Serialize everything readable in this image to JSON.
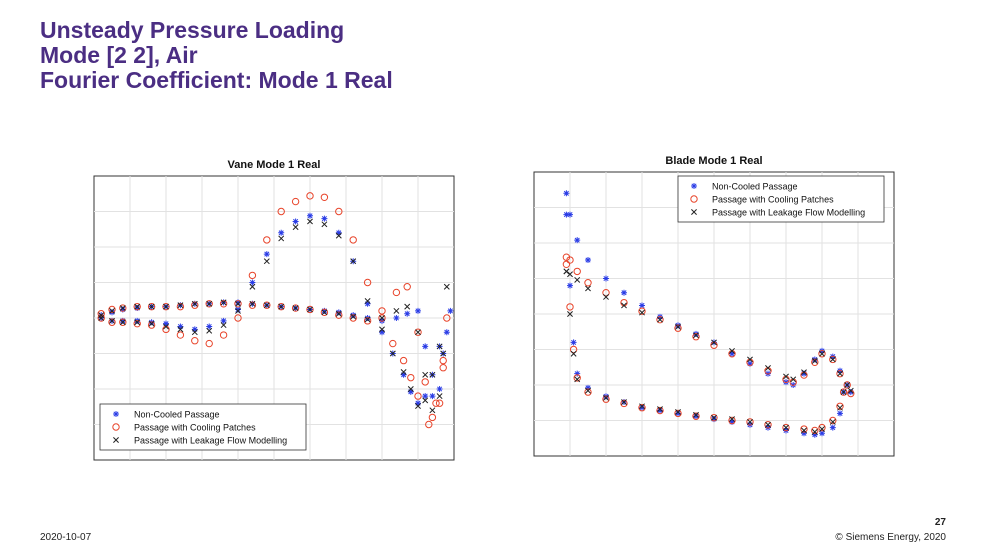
{
  "slide": {
    "title_lines": [
      "Unsteady Pressure Loading",
      "Mode [2 2], Air",
      "Fourier Coefficient: Mode 1 Real"
    ],
    "footer_date": "2020-10-07",
    "footer_copyright": "© Siemens Energy, 2020",
    "page_number": "27",
    "title_color": "#4b2e83"
  },
  "chart_data": [
    {
      "type": "scatter",
      "title": "Vane Mode 1 Real",
      "xlabel": "",
      "ylabel": "",
      "xlim": [
        0,
        1
      ],
      "ylim": [
        -1,
        1
      ],
      "grid": true,
      "legend_position": "bottom-left",
      "series": [
        {
          "name": "Non-Cooled Passage",
          "marker": "star",
          "color": "#2a3ce6",
          "x": [
            0.02,
            0.05,
            0.08,
            0.12,
            0.16,
            0.2,
            0.24,
            0.28,
            0.32,
            0.36,
            0.4,
            0.44,
            0.48,
            0.52,
            0.56,
            0.6,
            0.64,
            0.68,
            0.72,
            0.76,
            0.8,
            0.84,
            0.87,
            0.9,
            0.92,
            0.94,
            0.96,
            0.97,
            0.98,
            0.99
          ],
          "y": [
            0.02,
            0.04,
            0.06,
            0.07,
            0.08,
            0.08,
            0.09,
            0.1,
            0.1,
            0.11,
            0.11,
            0.1,
            0.09,
            0.08,
            0.07,
            0.06,
            0.05,
            0.04,
            0.02,
            0.0,
            -0.02,
            0.0,
            0.03,
            0.05,
            -0.2,
            -0.55,
            -0.5,
            -0.25,
            -0.1,
            0.05
          ]
        },
        {
          "name": "Non-Cooled Passage",
          "marker": "star",
          "color": "#2a3ce6",
          "x": [
            0.02,
            0.05,
            0.08,
            0.12,
            0.16,
            0.2,
            0.24,
            0.28,
            0.32,
            0.36,
            0.4,
            0.44,
            0.48,
            0.52,
            0.56,
            0.6,
            0.64,
            0.68,
            0.72,
            0.76,
            0.8,
            0.83,
            0.86,
            0.88,
            0.9,
            0.92,
            0.94,
            0.96
          ],
          "y": [
            0.0,
            -0.02,
            -0.02,
            -0.02,
            -0.03,
            -0.04,
            -0.06,
            -0.08,
            -0.06,
            -0.02,
            0.06,
            0.25,
            0.45,
            0.6,
            0.68,
            0.72,
            0.7,
            0.6,
            0.4,
            0.1,
            -0.1,
            -0.25,
            -0.4,
            -0.52,
            -0.6,
            -0.55,
            -0.4,
            -0.2
          ]
        },
        {
          "name": "Passage with Cooling Patches",
          "marker": "circle",
          "color": "#e8442a",
          "x": [
            0.02,
            0.05,
            0.08,
            0.12,
            0.16,
            0.2,
            0.24,
            0.28,
            0.32,
            0.36,
            0.4,
            0.44,
            0.48,
            0.52,
            0.56,
            0.6,
            0.64,
            0.68,
            0.72,
            0.76,
            0.8,
            0.84,
            0.87,
            0.9,
            0.92,
            0.94,
            0.96,
            0.97,
            0.98
          ],
          "y": [
            0.03,
            0.06,
            0.07,
            0.08,
            0.08,
            0.08,
            0.08,
            0.09,
            0.1,
            0.1,
            0.1,
            0.09,
            0.09,
            0.08,
            0.07,
            0.06,
            0.04,
            0.02,
            0.0,
            -0.02,
            0.05,
            0.18,
            0.22,
            -0.1,
            -0.45,
            -0.7,
            -0.6,
            -0.3,
            0.0
          ]
        },
        {
          "name": "Passage with Cooling Patches",
          "marker": "circle",
          "color": "#e8442a",
          "x": [
            0.02,
            0.05,
            0.08,
            0.12,
            0.16,
            0.2,
            0.24,
            0.28,
            0.32,
            0.36,
            0.4,
            0.44,
            0.48,
            0.52,
            0.56,
            0.6,
            0.64,
            0.68,
            0.72,
            0.76,
            0.8,
            0.83,
            0.86,
            0.88,
            0.9,
            0.93,
            0.95,
            0.97
          ],
          "y": [
            0.0,
            -0.03,
            -0.03,
            -0.04,
            -0.05,
            -0.08,
            -0.12,
            -0.16,
            -0.18,
            -0.12,
            0.0,
            0.3,
            0.55,
            0.75,
            0.82,
            0.86,
            0.85,
            0.75,
            0.55,
            0.25,
            0.0,
            -0.18,
            -0.3,
            -0.42,
            -0.55,
            -0.75,
            -0.6,
            -0.35
          ]
        },
        {
          "name": "Passage with Leakage Flow Modelling",
          "marker": "x",
          "color": "#222222",
          "x": [
            0.02,
            0.05,
            0.08,
            0.12,
            0.16,
            0.2,
            0.24,
            0.28,
            0.32,
            0.36,
            0.4,
            0.44,
            0.48,
            0.52,
            0.56,
            0.6,
            0.64,
            0.68,
            0.72,
            0.76,
            0.8,
            0.84,
            0.87,
            0.9,
            0.92,
            0.94,
            0.96,
            0.97,
            0.98
          ],
          "y": [
            0.02,
            0.05,
            0.07,
            0.08,
            0.08,
            0.08,
            0.09,
            0.1,
            0.1,
            0.11,
            0.1,
            0.1,
            0.09,
            0.08,
            0.07,
            0.06,
            0.04,
            0.03,
            0.01,
            -0.01,
            0.0,
            0.05,
            0.08,
            -0.1,
            -0.4,
            -0.65,
            -0.55,
            -0.25,
            0.22
          ]
        },
        {
          "name": "Passage with Leakage Flow Modelling",
          "marker": "x",
          "color": "#222222",
          "x": [
            0.02,
            0.05,
            0.08,
            0.12,
            0.16,
            0.2,
            0.24,
            0.28,
            0.32,
            0.36,
            0.4,
            0.44,
            0.48,
            0.52,
            0.56,
            0.6,
            0.64,
            0.68,
            0.72,
            0.76,
            0.8,
            0.83,
            0.86,
            0.88,
            0.9,
            0.92,
            0.94,
            0.96
          ],
          "y": [
            0.0,
            -0.02,
            -0.03,
            -0.03,
            -0.04,
            -0.06,
            -0.08,
            -0.1,
            -0.09,
            -0.05,
            0.05,
            0.22,
            0.4,
            0.56,
            0.64,
            0.68,
            0.66,
            0.58,
            0.4,
            0.12,
            -0.08,
            -0.25,
            -0.38,
            -0.5,
            -0.62,
            -0.58,
            -0.4,
            -0.2
          ]
        }
      ],
      "legend": [
        "Non-Cooled Passage",
        "Passage with Cooling Patches",
        "Passage with Leakage Flow Modelling"
      ]
    },
    {
      "type": "scatter",
      "title": "Blade Mode 1 Real",
      "xlabel": "",
      "ylabel": "",
      "xlim": [
        0,
        1
      ],
      "ylim": [
        -1,
        1
      ],
      "grid": true,
      "legend_position": "top-right",
      "series": [
        {
          "name": "Non-Cooled Passage",
          "marker": "star",
          "color": "#2a3ce6",
          "x": [
            0.09,
            0.1,
            0.12,
            0.15,
            0.2,
            0.25,
            0.3,
            0.35,
            0.4,
            0.45,
            0.5,
            0.55,
            0.6,
            0.65,
            0.7,
            0.72,
            0.75,
            0.78,
            0.8,
            0.83,
            0.85,
            0.87,
            0.88
          ],
          "y": [
            0.85,
            0.7,
            0.52,
            0.38,
            0.25,
            0.15,
            0.06,
            -0.02,
            -0.08,
            -0.14,
            -0.2,
            -0.28,
            -0.35,
            -0.42,
            -0.48,
            -0.5,
            -0.42,
            -0.32,
            -0.26,
            -0.3,
            -0.4,
            -0.5,
            -0.55
          ]
        },
        {
          "name": "Non-Cooled Passage",
          "marker": "star",
          "color": "#2a3ce6",
          "x": [
            0.09,
            0.1,
            0.11,
            0.12,
            0.15,
            0.2,
            0.25,
            0.3,
            0.35,
            0.4,
            0.45,
            0.5,
            0.55,
            0.6,
            0.65,
            0.7,
            0.75,
            0.78,
            0.8,
            0.83,
            0.85,
            0.86
          ],
          "y": [
            0.7,
            0.2,
            -0.2,
            -0.42,
            -0.52,
            -0.58,
            -0.62,
            -0.66,
            -0.68,
            -0.7,
            -0.72,
            -0.74,
            -0.76,
            -0.78,
            -0.8,
            -0.82,
            -0.84,
            -0.85,
            -0.84,
            -0.8,
            -0.7,
            -0.55
          ]
        },
        {
          "name": "Passage with Cooling Patches",
          "marker": "circle",
          "color": "#e8442a",
          "x": [
            0.09,
            0.1,
            0.12,
            0.15,
            0.2,
            0.25,
            0.3,
            0.35,
            0.4,
            0.45,
            0.5,
            0.55,
            0.6,
            0.65,
            0.7,
            0.72,
            0.75,
            0.78,
            0.8,
            0.83,
            0.85,
            0.87,
            0.88
          ],
          "y": [
            0.4,
            0.38,
            0.3,
            0.22,
            0.15,
            0.08,
            0.02,
            -0.04,
            -0.1,
            -0.16,
            -0.22,
            -0.28,
            -0.34,
            -0.4,
            -0.46,
            -0.48,
            -0.43,
            -0.34,
            -0.28,
            -0.32,
            -0.42,
            -0.5,
            -0.56
          ]
        },
        {
          "name": "Passage with Cooling Patches",
          "marker": "circle",
          "color": "#e8442a",
          "x": [
            0.09,
            0.1,
            0.11,
            0.12,
            0.15,
            0.2,
            0.25,
            0.3,
            0.35,
            0.4,
            0.45,
            0.5,
            0.55,
            0.6,
            0.65,
            0.7,
            0.75,
            0.78,
            0.8,
            0.83,
            0.85,
            0.86
          ],
          "y": [
            0.35,
            0.05,
            -0.25,
            -0.45,
            -0.55,
            -0.6,
            -0.63,
            -0.66,
            -0.68,
            -0.7,
            -0.72,
            -0.73,
            -0.75,
            -0.76,
            -0.78,
            -0.8,
            -0.81,
            -0.82,
            -0.8,
            -0.75,
            -0.65,
            -0.55
          ]
        },
        {
          "name": "Passage with Leakage Flow Modelling",
          "marker": "x",
          "color": "#222222",
          "x": [
            0.09,
            0.1,
            0.12,
            0.15,
            0.2,
            0.25,
            0.3,
            0.35,
            0.4,
            0.45,
            0.5,
            0.55,
            0.6,
            0.65,
            0.7,
            0.72,
            0.75,
            0.78,
            0.8,
            0.83,
            0.85,
            0.87,
            0.88
          ],
          "y": [
            0.3,
            0.28,
            0.24,
            0.18,
            0.12,
            0.06,
            0.01,
            -0.04,
            -0.09,
            -0.15,
            -0.2,
            -0.26,
            -0.32,
            -0.38,
            -0.44,
            -0.46,
            -0.41,
            -0.33,
            -0.28,
            -0.32,
            -0.42,
            -0.5,
            -0.54
          ]
        },
        {
          "name": "Passage with Leakage Flow Modelling",
          "marker": "x",
          "color": "#222222",
          "x": [
            0.09,
            0.1,
            0.11,
            0.12,
            0.15,
            0.2,
            0.25,
            0.3,
            0.35,
            0.4,
            0.45,
            0.5,
            0.55,
            0.6,
            0.65,
            0.7,
            0.75,
            0.78,
            0.8,
            0.83,
            0.85,
            0.86
          ],
          "y": [
            0.3,
            0.0,
            -0.28,
            -0.46,
            -0.54,
            -0.59,
            -0.62,
            -0.65,
            -0.67,
            -0.69,
            -0.71,
            -0.73,
            -0.74,
            -0.76,
            -0.78,
            -0.8,
            -0.82,
            -0.83,
            -0.81,
            -0.76,
            -0.66,
            -0.55
          ]
        }
      ],
      "legend": [
        "Non-Cooled Passage",
        "Passage with Cooling Patches",
        "Passage with Leakage Flow Modelling"
      ]
    }
  ]
}
